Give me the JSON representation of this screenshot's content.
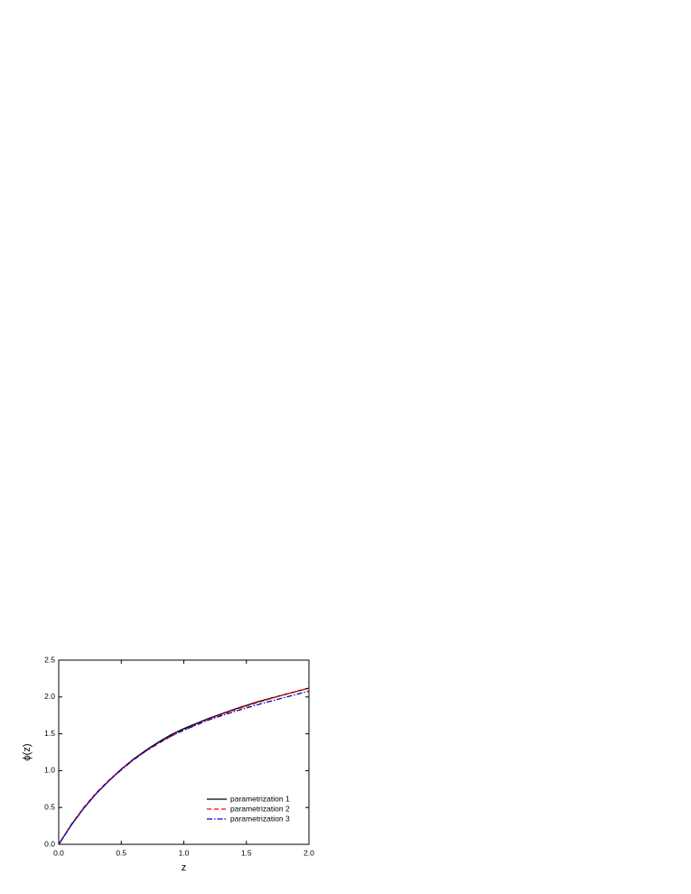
{
  "chart_data": {
    "type": "line",
    "xlabel": "z",
    "ylabel": "ϕ(z)",
    "x": [
      0,
      0.1,
      0.2,
      0.3,
      0.4,
      0.5,
      0.6,
      0.7,
      0.8,
      0.9,
      1.0,
      1.2,
      1.4,
      1.6,
      1.8,
      2.0
    ],
    "series": [
      {
        "name": "parametrization 1",
        "color": "#000000",
        "dash": "solid",
        "values": [
          0,
          0.26,
          0.49,
          0.69,
          0.86,
          1.02,
          1.16,
          1.28,
          1.39,
          1.49,
          1.57,
          1.71,
          1.83,
          1.94,
          2.03,
          2.12
        ]
      },
      {
        "name": "parametrization 2",
        "color": "#ff0000",
        "dash": "dashed",
        "values": [
          0,
          0.27,
          0.5,
          0.7,
          0.87,
          1.02,
          1.15,
          1.27,
          1.37,
          1.47,
          1.55,
          1.7,
          1.82,
          1.93,
          2.03,
          2.12
        ]
      },
      {
        "name": "parametrization 3",
        "color": "#0000cc",
        "dash": "dashdot",
        "values": [
          0,
          0.26,
          0.49,
          0.69,
          0.86,
          1.01,
          1.15,
          1.27,
          1.38,
          1.47,
          1.55,
          1.69,
          1.8,
          1.9,
          1.99,
          2.08
        ]
      }
    ],
    "xlim": [
      0,
      2
    ],
    "xticks": [
      {
        "value": 0,
        "label": "0.0"
      },
      {
        "value": 0.5,
        "label": "0.5"
      },
      {
        "value": 1,
        "label": "1.0"
      },
      {
        "value": 1.5,
        "label": "1.5"
      },
      {
        "value": 2,
        "label": "2.0"
      }
    ],
    "ylim": [
      0,
      2.5
    ],
    "yticks": [
      {
        "value": 0,
        "label": "0.0"
      },
      {
        "value": 0.5,
        "label": "0.5"
      },
      {
        "value": 1,
        "label": "1.0"
      },
      {
        "value": 1.5,
        "label": "1.5"
      },
      {
        "value": 2,
        "label": "2.0"
      },
      {
        "value": 2.5,
        "label": "2.5"
      }
    ],
    "legend": "lower right"
  }
}
